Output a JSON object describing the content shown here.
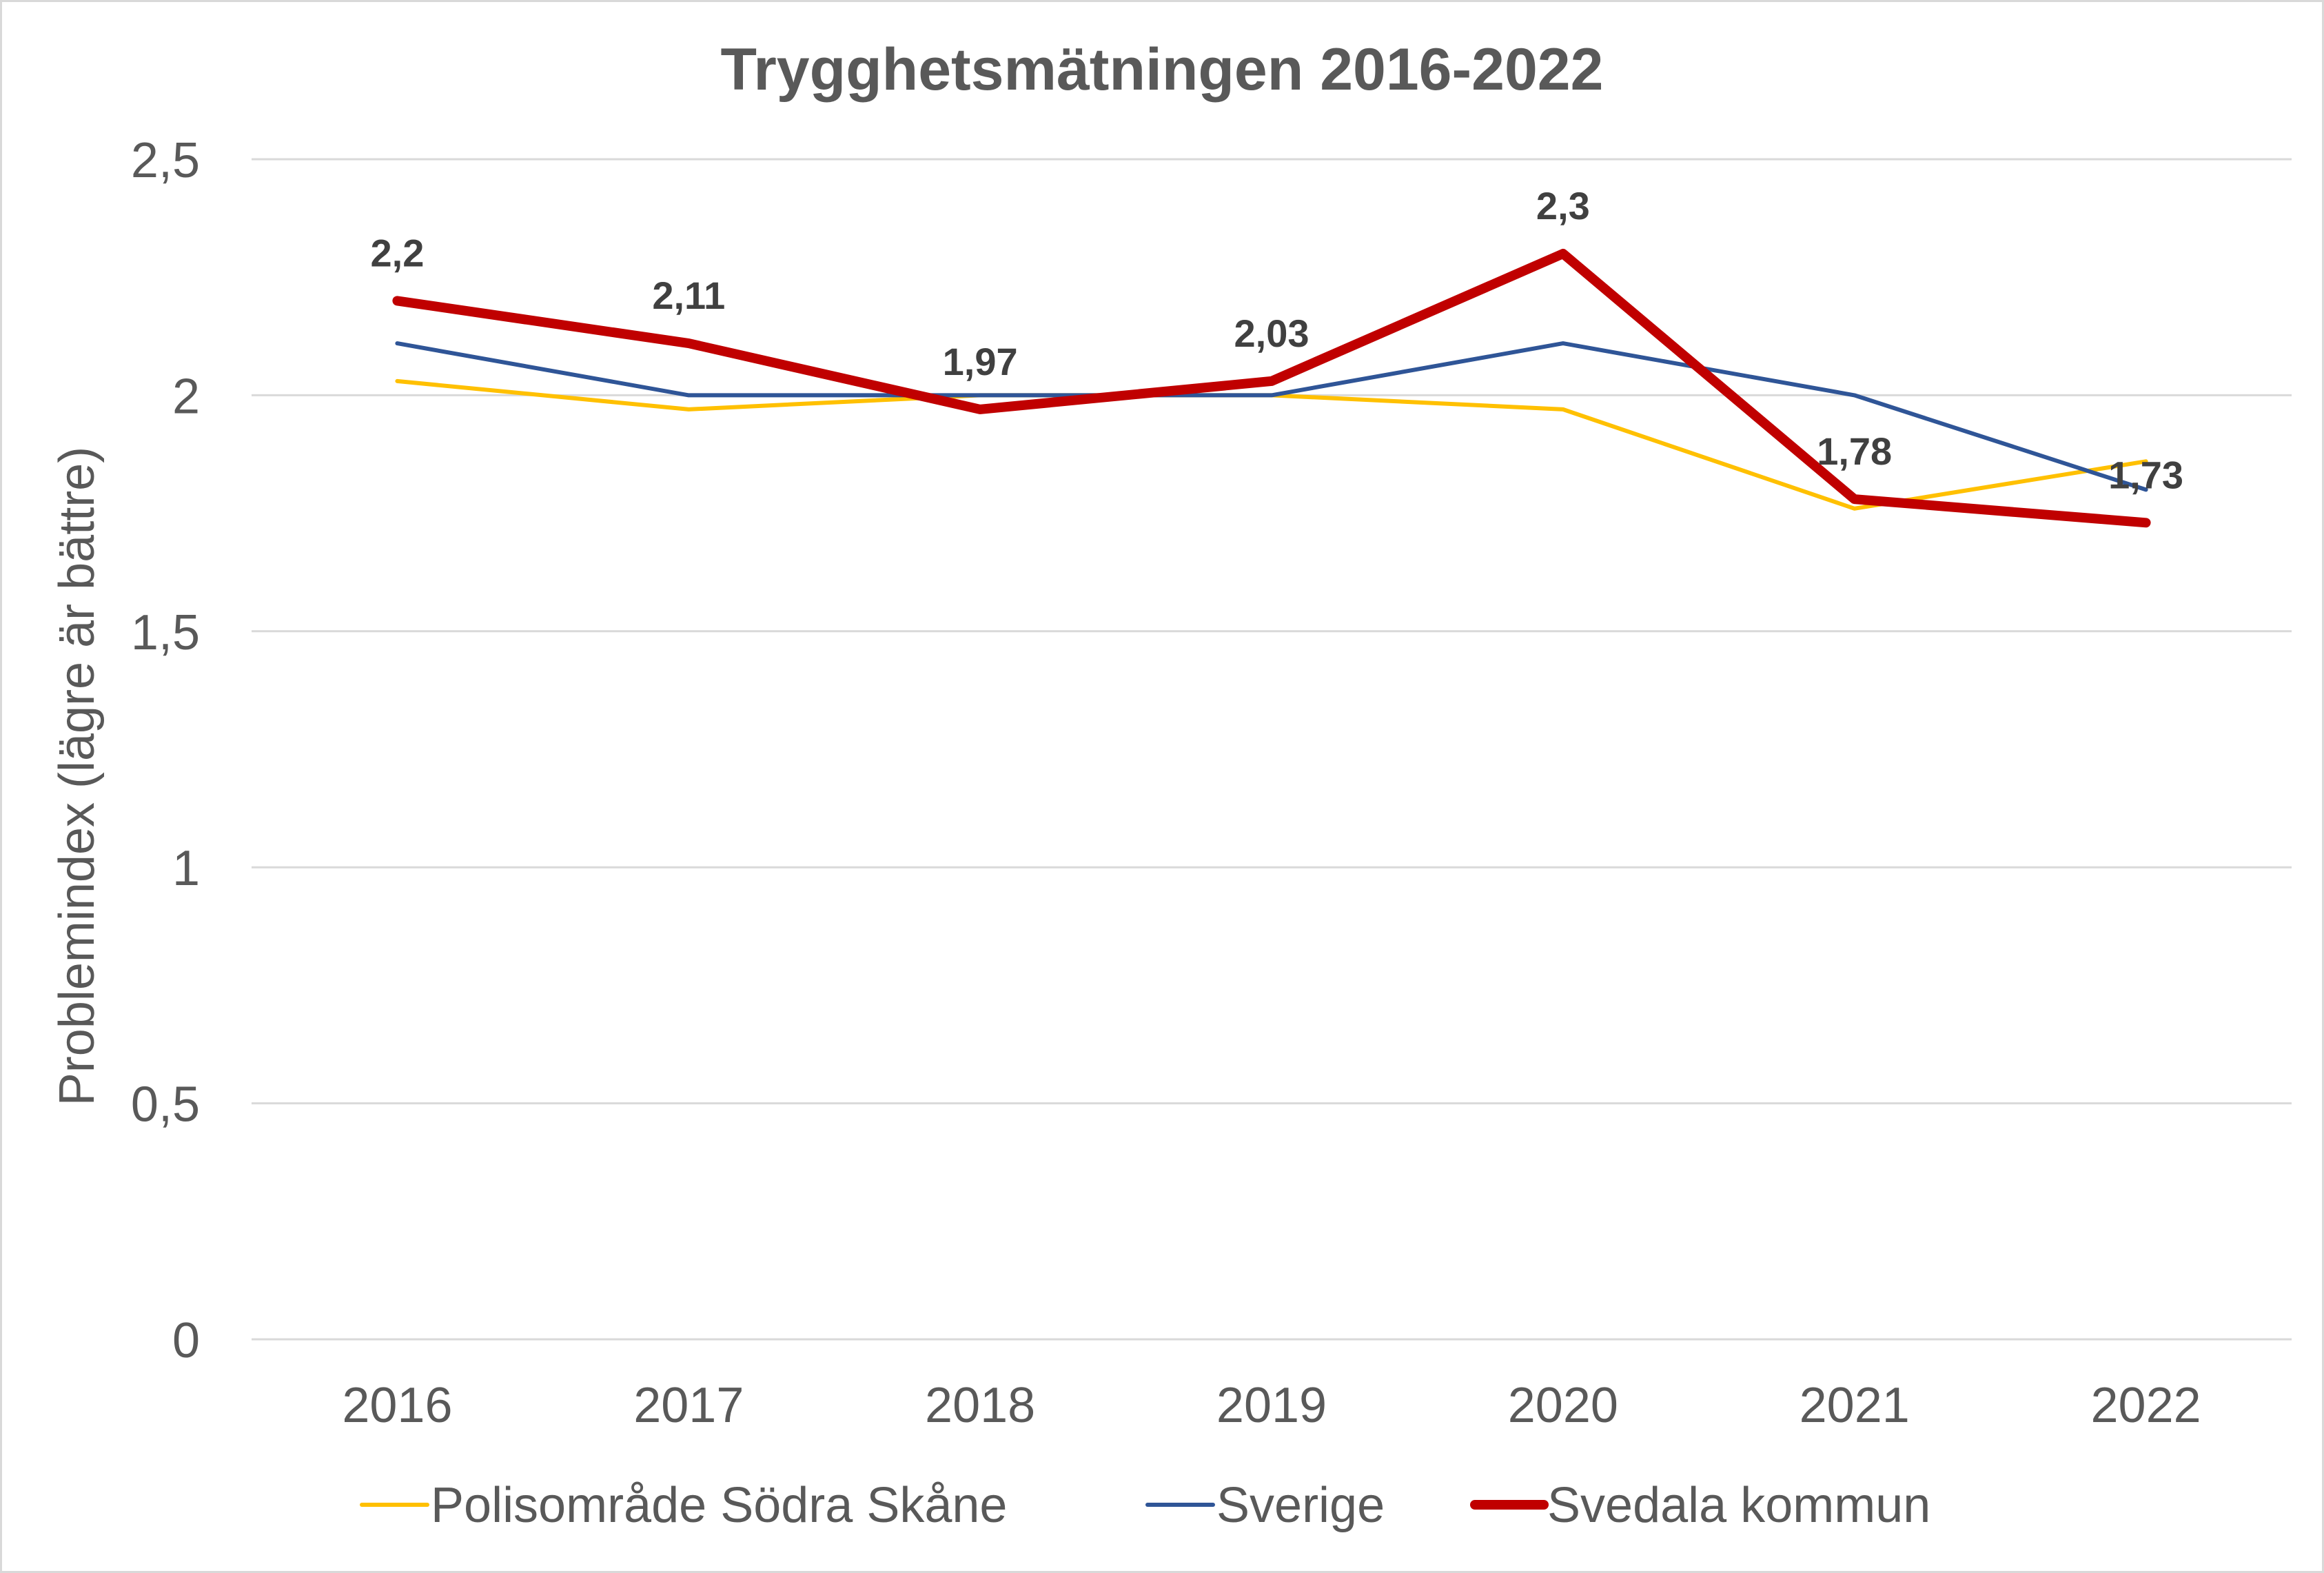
{
  "chart_data": {
    "type": "line",
    "title": "Trygghetsmätningen 2016-2022",
    "ylabel": "Problemindex (lägre är bättre)",
    "xlabel": "",
    "categories": [
      "2016",
      "2017",
      "2018",
      "2019",
      "2020",
      "2021",
      "2022"
    ],
    "ylim": [
      0,
      2.5
    ],
    "yticks": [
      {
        "value": 0,
        "label": "0"
      },
      {
        "value": 0.5,
        "label": "0,5"
      },
      {
        "value": 1,
        "label": "1"
      },
      {
        "value": 1.5,
        "label": "1,5"
      },
      {
        "value": 2,
        "label": "2"
      },
      {
        "value": 2.5,
        "label": "2,5"
      }
    ],
    "grid": true,
    "legend_position": "bottom",
    "series": [
      {
        "name": "Polisområde Södra Skåne",
        "color": "#FFC000",
        "values": [
          2.03,
          1.97,
          2.0,
          2.0,
          1.97,
          1.76,
          1.86
        ],
        "show_labels": false
      },
      {
        "name": "Sverige",
        "color": "#2F5597",
        "values": [
          2.11,
          2.0,
          2.0,
          2.0,
          2.11,
          2.0,
          1.8
        ],
        "show_labels": false
      },
      {
        "name": "Svedala kommun",
        "color": "#C00000",
        "values": [
          2.2,
          2.11,
          1.97,
          2.03,
          2.3,
          1.78,
          1.73
        ],
        "data_labels": [
          "2,2",
          "2,11",
          "1,97",
          "2,03",
          "2,3",
          "1,78",
          "1,73"
        ],
        "show_labels": true
      }
    ]
  }
}
